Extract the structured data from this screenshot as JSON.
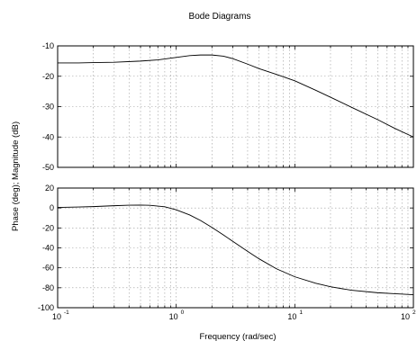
{
  "chart_data": {
    "type": "line",
    "title": "Bode Diagrams",
    "xlabel": "Frequency (rad/sec)",
    "ylabel": "Phase (deg); Magnitude (dB)",
    "xscale": "log",
    "xlim": [
      0.1,
      100
    ],
    "x_tick_labels": [
      {
        "base": "10",
        "exp": "-1"
      },
      {
        "base": "10",
        "exp": "0"
      },
      {
        "base": "10",
        "exp": "1"
      },
      {
        "base": "10",
        "exp": "2"
      }
    ],
    "grid": true,
    "panels": [
      {
        "name": "magnitude",
        "ylim": [
          -50,
          -10
        ],
        "yticks": [
          -10,
          -20,
          -30,
          -40,
          -50
        ],
        "y_tick_labels": [
          "-10",
          "-20",
          "-30",
          "-40",
          "-50"
        ],
        "series": [
          {
            "x": [
              0.1,
              0.15,
              0.2,
              0.3,
              0.5,
              0.7,
              1.0,
              1.3,
              1.6,
              2.0,
              2.5,
              3.0,
              4.0,
              5.0,
              7.0,
              10,
              15,
              20,
              30,
              50,
              70,
              100
            ],
            "values": [
              -15.6,
              -15.6,
              -15.5,
              -15.4,
              -15.0,
              -14.6,
              -13.8,
              -13.2,
              -13.0,
              -13.0,
              -13.4,
              -14.2,
              -16.0,
              -17.5,
              -19.4,
              -21.5,
              -24.6,
              -26.9,
              -30.2,
              -34.3,
              -37.2,
              -40.0
            ]
          }
        ]
      },
      {
        "name": "phase",
        "ylim": [
          -100,
          20
        ],
        "yticks": [
          20,
          0,
          -20,
          -40,
          -60,
          -80,
          -100
        ],
        "y_tick_labels": [
          "20",
          "0",
          "-20",
          "-40",
          "-60",
          "-80",
          "-100"
        ],
        "series": [
          {
            "x": [
              0.1,
              0.15,
              0.2,
              0.3,
              0.4,
              0.5,
              0.6,
              0.8,
              1.0,
              1.3,
              1.6,
              2.0,
              2.5,
              3.0,
              4.0,
              5.0,
              7.0,
              10,
              15,
              20,
              30,
              50,
              70,
              100
            ],
            "values": [
              0.5,
              1.0,
              1.4,
              2.3,
              2.8,
              2.9,
              2.7,
              1.2,
              -1.8,
              -7.0,
              -12.5,
              -19.5,
              -27.0,
              -33.5,
              -43.5,
              -51.0,
              -61.0,
              -69.0,
              -75.5,
              -79.0,
              -82.5,
              -85.0,
              -86.0,
              -87.0
            ]
          }
        ]
      }
    ]
  }
}
